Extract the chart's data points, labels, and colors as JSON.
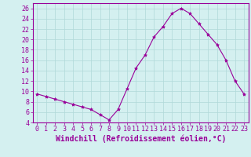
{
  "x": [
    0,
    1,
    2,
    3,
    4,
    5,
    6,
    7,
    8,
    9,
    10,
    11,
    12,
    13,
    14,
    15,
    16,
    17,
    18,
    19,
    20,
    21,
    22,
    23
  ],
  "y": [
    9.5,
    9.0,
    8.5,
    8.0,
    7.5,
    7.0,
    6.5,
    5.5,
    4.5,
    6.5,
    10.5,
    14.5,
    17.0,
    20.5,
    22.5,
    25.0,
    26.0,
    25.0,
    23.0,
    21.0,
    19.0,
    16.0,
    12.0,
    9.5
  ],
  "line_color": "#990099",
  "marker": "*",
  "marker_size": 3,
  "bg_color": "#d4f0f0",
  "grid_color": "#b0d8d8",
  "axis_color": "#990099",
  "xlabel": "Windchill (Refroidissement éolien,°C)",
  "ylim": [
    4,
    27
  ],
  "xlim": [
    -0.5,
    23.5
  ],
  "yticks": [
    4,
    6,
    8,
    10,
    12,
    14,
    16,
    18,
    20,
    22,
    24,
    26
  ],
  "xticks": [
    0,
    1,
    2,
    3,
    4,
    5,
    6,
    7,
    8,
    9,
    10,
    11,
    12,
    13,
    14,
    15,
    16,
    17,
    18,
    19,
    20,
    21,
    22,
    23
  ],
  "tick_label_size": 6,
  "xlabel_size": 7
}
